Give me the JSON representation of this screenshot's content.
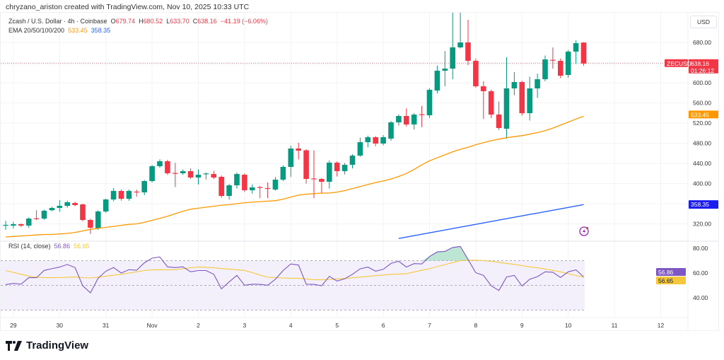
{
  "attribution": "chryzano_ariston created with TradingView.com, Nov 10, 2025 10:33 UTC",
  "legend": {
    "symbol": "Zcash / U.S. Dollar · 4h · Coinbase",
    "o_label": "O",
    "o": "679.74",
    "h_label": "H",
    "h": "680.52",
    "l_label": "L",
    "l": "633.70",
    "c_label": "C",
    "c": "638.16",
    "change": "−41.19 (−6.06%)",
    "ema_label": "EMA 20/50/100/200",
    "ema_a": "533.45",
    "ema_b": "358.35"
  },
  "rsi_legend": {
    "label": "RSI (14, close)",
    "value": "56.86",
    "ma": "56.65"
  },
  "currency": "USD",
  "brand": "TradingView",
  "price_axis": [
    "680.00",
    "600.00",
    "560.00",
    "520.00",
    "480.00",
    "440.00",
    "400.00",
    "320.00"
  ],
  "rsi_axis": [
    "80.00",
    "60.00",
    "40.00"
  ],
  "time_axis": [
    "29",
    "30",
    "31",
    "Nov",
    "2",
    "3",
    "4",
    "5",
    "6",
    "7",
    "8",
    "9",
    "10",
    "11",
    "12"
  ],
  "price_tags": {
    "symbol": "ZECUSD",
    "last": "638.16",
    "countdown": "01:26:12",
    "ema_a": "533.45",
    "ema_b": "358.35",
    "rsi": "56.86",
    "rsi_ma": "56.65"
  },
  "colors": {
    "up": "#089981",
    "down": "#f23645",
    "ema_a": "#ff9800",
    "ema_b": "#2962ff",
    "rsi": "#7e57c2",
    "rsi_ma": "#f5c83b",
    "band": "#f3f0fb"
  },
  "chart_data": {
    "type": "candlestick",
    "interval": "4h",
    "ylim": [
      300,
      700
    ],
    "candles_ohlc": [
      [
        317,
        326,
        308,
        318
      ],
      [
        316.5,
        324,
        311,
        319.3
      ],
      [
        319.3,
        321,
        314,
        316.5
      ],
      [
        316.5,
        333,
        312,
        330.5
      ],
      [
        331,
        347,
        327,
        330
      ],
      [
        330.5,
        348,
        328,
        346
      ],
      [
        347,
        354,
        345,
        351.6
      ],
      [
        351.6,
        367,
        344,
        355.8
      ],
      [
        355.8,
        366,
        352,
        362.8
      ],
      [
        361.4,
        364,
        355,
        357.2
      ],
      [
        358.6,
        360,
        325,
        327.7
      ],
      [
        327.7,
        330,
        300,
        312.3
      ],
      [
        311,
        347,
        308,
        344.6
      ],
      [
        344.6,
        370,
        342,
        368.4
      ],
      [
        368.4,
        391,
        365,
        385.3
      ],
      [
        385.3,
        388,
        366,
        369.8
      ],
      [
        369.8,
        388,
        366,
        385.3
      ],
      [
        384,
        388,
        374,
        383
      ],
      [
        382.5,
        407,
        377,
        404.9
      ],
      [
        404.9,
        437,
        402,
        434.4
      ],
      [
        434.4,
        448,
        431,
        444.2
      ],
      [
        444.2,
        447,
        417,
        420.4
      ],
      [
        421,
        441,
        393,
        420
      ],
      [
        420.4,
        428,
        417,
        424.6
      ],
      [
        424.6,
        430,
        409,
        411.9
      ],
      [
        411.9,
        428,
        398,
        417.5
      ],
      [
        419,
        422,
        408,
        420
      ],
      [
        418.9,
        425,
        409,
        411.9
      ],
      [
        413.3,
        416,
        372,
        375.4
      ],
      [
        375.4,
        399,
        368.4,
        396.5
      ],
      [
        396.5,
        422,
        390,
        418.9
      ],
      [
        417.5,
        420,
        383,
        386.7
      ],
      [
        386.7,
        398,
        380,
        392.3
      ],
      [
        393,
        395,
        371,
        392
      ],
      [
        391,
        402,
        371,
        389.5
      ],
      [
        388.1,
        413,
        386,
        407.7
      ],
      [
        407.7,
        436,
        405,
        433
      ],
      [
        433,
        475,
        413,
        469.5
      ],
      [
        469.5,
        481,
        448,
        465.3
      ],
      [
        466,
        468,
        400,
        409.1
      ],
      [
        410,
        466,
        371,
        409
      ],
      [
        409.1,
        411,
        380,
        403.5
      ],
      [
        403.5,
        446,
        390,
        441.4
      ],
      [
        441.4,
        444,
        414,
        424.6
      ],
      [
        424.6,
        441,
        418,
        437.2
      ],
      [
        437.2,
        458,
        430,
        455.4
      ],
      [
        455.4,
        491,
        453,
        482.1
      ],
      [
        482.1,
        495,
        472,
        491.9
      ],
      [
        491.9,
        494,
        474,
        479.3
      ],
      [
        479.3,
        496,
        476,
        491.9
      ],
      [
        489.1,
        524,
        485,
        521.4
      ],
      [
        521.4,
        537,
        515,
        534
      ],
      [
        534,
        549,
        513,
        517.2
      ],
      [
        517.2,
        540,
        507,
        536.8
      ],
      [
        537.5,
        554,
        512,
        536.8
      ],
      [
        535.4,
        589,
        530,
        586
      ],
      [
        584.6,
        634,
        579,
        623.9
      ],
      [
        623.9,
        663,
        593,
        628.1
      ],
      [
        628.1,
        740,
        607,
        670.2
      ],
      [
        670.2,
        740,
        668,
        680
      ],
      [
        680,
        725,
        635,
        643.5
      ],
      [
        643.5,
        648,
        590,
        593
      ],
      [
        593,
        603,
        528,
        583.2
      ],
      [
        583.2,
        586,
        530,
        536.8
      ],
      [
        537,
        563,
        506,
        510.2
      ],
      [
        508.8,
        650.5,
        489,
        588.8
      ],
      [
        588.8,
        621,
        575,
        601.4
      ],
      [
        601.4,
        604,
        535,
        539.6
      ],
      [
        539.6,
        612,
        525,
        588.8
      ],
      [
        588.8,
        618,
        570,
        607
      ],
      [
        607,
        654,
        603,
        646.3
      ],
      [
        645.5,
        670,
        628,
        644.9
      ],
      [
        643.5,
        648,
        609,
        614
      ],
      [
        615.4,
        665,
        610,
        661.8
      ],
      [
        661.8,
        684,
        637,
        678.6
      ],
      [
        679.74,
        680.52,
        633.7,
        638.16
      ]
    ],
    "ema_a": [
      294,
      295,
      296,
      297,
      298,
      299,
      299,
      300,
      301,
      303,
      306,
      309,
      311,
      313,
      315,
      317,
      319,
      320,
      323,
      327,
      331,
      335,
      340,
      345,
      349,
      351,
      353,
      355,
      357,
      358,
      360,
      362,
      363,
      364,
      365,
      366,
      369,
      373,
      377,
      379,
      380,
      381,
      381,
      383,
      386,
      390,
      394,
      398,
      402,
      405,
      409,
      414,
      420,
      428,
      437,
      445,
      451,
      457,
      463,
      468,
      472,
      477,
      481,
      485,
      488,
      491,
      493,
      495,
      498,
      501,
      505,
      510,
      516,
      522,
      528,
      533.45
    ],
    "ema_b": [
      null,
      null,
      null,
      null,
      null,
      null,
      null,
      null,
      null,
      null,
      null,
      null,
      null,
      null,
      null,
      null,
      null,
      null,
      null,
      null,
      null,
      null,
      null,
      null,
      null,
      null,
      null,
      null,
      null,
      null,
      null,
      null,
      null,
      null,
      null,
      null,
      null,
      null,
      null,
      null,
      null,
      null,
      null,
      null,
      null,
      null,
      null,
      null,
      null,
      null,
      null,
      291,
      293.8,
      296.6,
      299.4,
      302.2,
      305,
      307.8,
      310.6,
      313.4,
      316.2,
      319,
      321.8,
      324.6,
      327.4,
      330.2,
      333,
      335.8,
      338.6,
      341.4,
      344.2,
      347,
      349.8,
      352.6,
      355.4,
      358.35
    ],
    "rsi": {
      "ylim": [
        20,
        90
      ],
      "bands": [
        70,
        50,
        30
      ],
      "values": [
        50.7,
        51.6,
        51.0,
        56.2,
        56.2,
        62.1,
        63.5,
        64.8,
        66.9,
        64.4,
        49.7,
        44.0,
        55.8,
        61.5,
        64.4,
        60.0,
        62.7,
        62.3,
        68.2,
        72.0,
        73.0,
        65.0,
        64.4,
        65.0,
        61.0,
        62.0,
        62.0,
        59.0,
        47.2,
        52.8,
        58.1,
        50.1,
        51.0,
        50.8,
        50.1,
        55.0,
        62.0,
        67.3,
        66.4,
        51.0,
        50.8,
        49.7,
        57.3,
        53.5,
        55.4,
        59.0,
        63.4,
        64.8,
        61.5,
        63.0,
        67.8,
        69.5,
        64.8,
        67.6,
        67.3,
        73.3,
        77.1,
        77.5,
        80.6,
        81.5,
        71.0,
        60.2,
        58.1,
        49.7,
        45.9,
        56.8,
        58.1,
        49.5,
        55.0,
        57.1,
        61.0,
        60.6,
        56.4,
        61.0,
        62.5,
        56.86
      ],
      "ma": [
        62,
        60.5,
        59,
        57.5,
        56.5,
        56.2,
        56.2,
        56.3,
        56.5,
        56.8,
        56.3,
        56,
        56.6,
        57.4,
        58.2,
        59,
        60,
        61,
        62,
        62.5,
        62.6,
        62.6,
        62.7,
        63.5,
        64.3,
        64.8,
        64.6,
        64.2,
        63.6,
        63.1,
        62.6,
        62.1,
        60.3,
        58.4,
        56.6,
        56.2,
        56,
        55.8,
        55.8,
        55.2,
        54.6,
        54.5,
        54.8,
        55.2,
        55.6,
        56.1,
        56.7,
        57.3,
        57.9,
        58.4,
        58.9,
        59.2,
        59.5,
        60.8,
        62.2,
        63.5,
        65.2,
        66.8,
        68.4,
        70,
        70.2,
        70.4,
        70,
        69.5,
        68.6,
        67.8,
        67,
        66,
        65,
        64.2,
        63.2,
        62.1,
        61,
        59.4,
        58,
        56.65
      ]
    }
  }
}
